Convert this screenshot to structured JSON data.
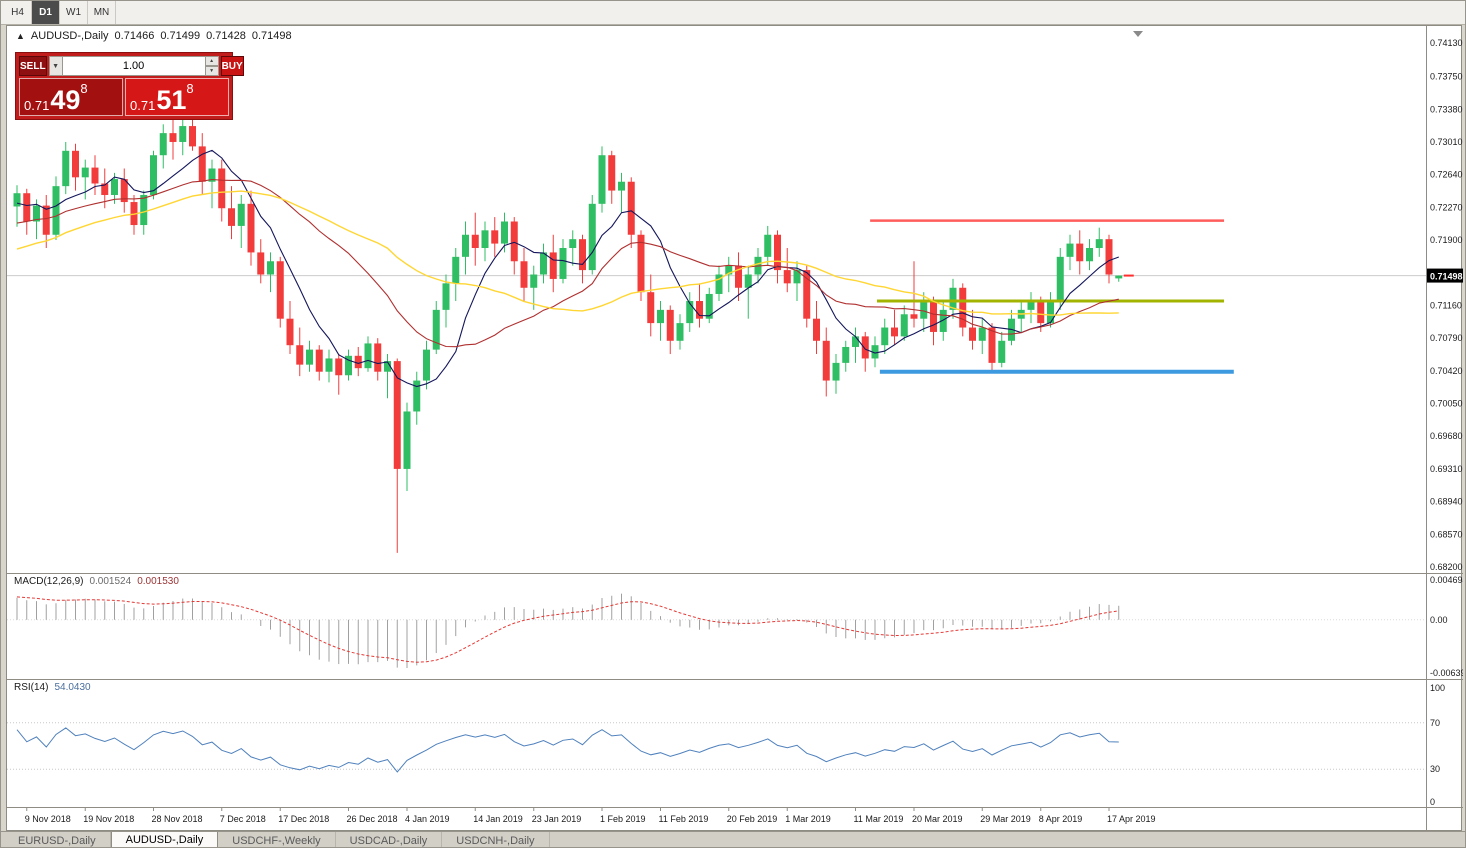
{
  "timeframe_bar": {
    "tabs": [
      {
        "label": "H4",
        "active": false
      },
      {
        "label": "D1",
        "active": true
      },
      {
        "label": "W1",
        "active": false
      },
      {
        "label": "MN",
        "active": false
      }
    ]
  },
  "chart_header": {
    "collapse_icon": "▲",
    "symbol": "AUDUSD-,Daily",
    "open": "0.71466",
    "high": "0.71499",
    "low": "0.71428",
    "close": "0.71498"
  },
  "trade_widget": {
    "sell_label": "SELL",
    "buy_label": "BUY",
    "volume": "1.00",
    "sell_price": {
      "base": "0.71",
      "big": "49",
      "sup": "8"
    },
    "buy_price": {
      "base": "0.71",
      "big": "51",
      "sup": "8"
    },
    "panel_color": "#c21d1d"
  },
  "indicator_headers": {
    "macd_label": "MACD(12,26,9)",
    "macd_value": "0.001524",
    "macd_signal_value": "0.001530",
    "rsi_label": "RSI(14)",
    "rsi_value": "54.0430"
  },
  "bottom_tabs": {
    "tabs": [
      {
        "label": "EURUSD-,Daily",
        "active": false
      },
      {
        "label": "AUDUSD-,Daily",
        "active": true
      },
      {
        "label": "USDCHF-,Weekly",
        "active": false
      },
      {
        "label": "USDCAD-,Daily",
        "active": false
      },
      {
        "label": "USDCNH-,Daily",
        "active": false
      }
    ]
  },
  "chart_data": {
    "type": "candlestick",
    "symbol": "AUDUSD",
    "timeframe": "Daily",
    "colors": {
      "bull": "#2fbe63",
      "bear": "#f23c3c",
      "macd_hist": "#a0a0a0",
      "macd_signal": "#e53935",
      "rsi": "#4f81bd",
      "current_price_line": "#cccccc"
    },
    "price_axis": {
      "current": 0.71498,
      "current_label": "0.71498",
      "labels": [
        "0.74130",
        "0.73750",
        "0.73380",
        "0.73010",
        "0.72640",
        "0.72270",
        "0.71900",
        "0.71530",
        "0.71160",
        "0.70790",
        "0.70420",
        "0.70050",
        "0.69680",
        "0.69310",
        "0.68940",
        "0.68570",
        "0.68200"
      ]
    },
    "x_labels": [
      {
        "text": "9 Nov 2018",
        "i": 1
      },
      {
        "text": "19 Nov 2018",
        "i": 7
      },
      {
        "text": "28 Nov 2018",
        "i": 14
      },
      {
        "text": "7 Dec 2018",
        "i": 21
      },
      {
        "text": "17 Dec 2018",
        "i": 27
      },
      {
        "text": "26 Dec 2018",
        "i": 34
      },
      {
        "text": "4 Jan 2019",
        "i": 40
      },
      {
        "text": "14 Jan 2019",
        "i": 47
      },
      {
        "text": "23 Jan 2019",
        "i": 53
      },
      {
        "text": "1 Feb 2019",
        "i": 60
      },
      {
        "text": "11 Feb 2019",
        "i": 66
      },
      {
        "text": "20 Feb 2019",
        "i": 73
      },
      {
        "text": "1 Mar 2019",
        "i": 79
      },
      {
        "text": "11 Mar 2019",
        "i": 86
      },
      {
        "text": "20 Mar 2019",
        "i": 92
      },
      {
        "text": "29 Mar 2019",
        "i": 99
      },
      {
        "text": "8 Apr 2019",
        "i": 105
      },
      {
        "text": "17 Apr 2019",
        "i": 112
      }
    ],
    "hlines": [
      {
        "price": 0.7212,
        "i1": 87.5,
        "i2": 123.8,
        "color": "#ff5c5c",
        "width": 2.5
      },
      {
        "price": 0.7121,
        "i1": 88.2,
        "i2": 123.8,
        "color": "#a3b400",
        "width": 3
      },
      {
        "price": 0.7041,
        "i1": 88.5,
        "i2": 124.8,
        "color": "#3e9ae0",
        "width": 4
      }
    ],
    "moving_averages": [
      {
        "period": 7,
        "color": "#14165c",
        "width": 1.1
      },
      {
        "period": 21,
        "color": "#b03030",
        "width": 1.1
      },
      {
        "period": 34,
        "color": "#ffd633",
        "width": 1.4
      }
    ],
    "macd": {
      "fast": 12,
      "slow": 26,
      "signal": 9,
      "axis_labels": [
        "0.004694",
        "0.00",
        "-0.00639"
      ]
    },
    "rsi": {
      "period": 14,
      "levels": [
        70,
        30
      ],
      "axis_labels": [
        "100",
        "70",
        "30",
        "0"
      ]
    },
    "pre_history_closes": [
      0.7085,
      0.707,
      0.7055,
      0.706,
      0.7045,
      0.703,
      0.704,
      0.7025,
      0.7035,
      0.705,
      0.704,
      0.706,
      0.7075,
      0.7065,
      0.708,
      0.7095,
      0.7085,
      0.71,
      0.7115,
      0.7105,
      0.712,
      0.711,
      0.7125,
      0.714,
      0.713,
      0.7145,
      0.716,
      0.715,
      0.7165,
      0.7155,
      0.717,
      0.7185,
      0.7175,
      0.719,
      0.718,
      0.7195,
      0.721,
      0.72,
      0.719,
      0.7205,
      0.722,
      0.721,
      0.7225,
      0.7215,
      0.723,
      0.722,
      0.7235,
      0.7225,
      0.724,
      0.723
    ],
    "candles": [
      [
        0.7228,
        0.7252,
        0.7205,
        0.7243
      ],
      [
        0.7243,
        0.7248,
        0.7196,
        0.7211
      ],
      [
        0.7211,
        0.7236,
        0.7191,
        0.7229
      ],
      [
        0.7229,
        0.7241,
        0.7181,
        0.7196
      ],
      [
        0.7196,
        0.7262,
        0.719,
        0.7251
      ],
      [
        0.7251,
        0.7301,
        0.7242,
        0.7291
      ],
      [
        0.7291,
        0.7299,
        0.7246,
        0.7261
      ],
      [
        0.7261,
        0.7281,
        0.7236,
        0.7272
      ],
      [
        0.7272,
        0.7286,
        0.7241,
        0.7254
      ],
      [
        0.7254,
        0.7271,
        0.7226,
        0.7241
      ],
      [
        0.7241,
        0.7266,
        0.7231,
        0.7259
      ],
      [
        0.7259,
        0.7271,
        0.7221,
        0.7233
      ],
      [
        0.7233,
        0.7241,
        0.7196,
        0.7207
      ],
      [
        0.7207,
        0.7246,
        0.7196,
        0.7241
      ],
      [
        0.7241,
        0.7291,
        0.7236,
        0.7286
      ],
      [
        0.7286,
        0.7321,
        0.7271,
        0.7311
      ],
      [
        0.7311,
        0.7331,
        0.7281,
        0.7301
      ],
      [
        0.7301,
        0.7326,
        0.7286,
        0.7319
      ],
      [
        0.7319,
        0.7331,
        0.7291,
        0.7296
      ],
      [
        0.7296,
        0.7311,
        0.7241,
        0.7256
      ],
      [
        0.7256,
        0.7281,
        0.7226,
        0.7271
      ],
      [
        0.7271,
        0.7281,
        0.7211,
        0.7226
      ],
      [
        0.7226,
        0.7251,
        0.7191,
        0.7206
      ],
      [
        0.7206,
        0.7241,
        0.7181,
        0.7231
      ],
      [
        0.7231,
        0.7246,
        0.7161,
        0.7176
      ],
      [
        0.7176,
        0.7191,
        0.7141,
        0.7151
      ],
      [
        0.7151,
        0.7176,
        0.7131,
        0.7166
      ],
      [
        0.7166,
        0.7171,
        0.7091,
        0.7101
      ],
      [
        0.7101,
        0.7121,
        0.7061,
        0.7071
      ],
      [
        0.7071,
        0.7091,
        0.7036,
        0.7049
      ],
      [
        0.7049,
        0.7076,
        0.7041,
        0.7066
      ],
      [
        0.7066,
        0.7071,
        0.7031,
        0.7041
      ],
      [
        0.7041,
        0.7066,
        0.7029,
        0.7056
      ],
      [
        0.7056,
        0.7061,
        0.7015,
        0.7037
      ],
      [
        0.7037,
        0.7066,
        0.7031,
        0.7059
      ],
      [
        0.7059,
        0.7069,
        0.7036,
        0.7045
      ],
      [
        0.7045,
        0.7081,
        0.7041,
        0.7073
      ],
      [
        0.7073,
        0.7079,
        0.7031,
        0.7041
      ],
      [
        0.7041,
        0.7061,
        0.7011,
        0.7053
      ],
      [
        0.7053,
        0.7056,
        0.6836,
        0.6931
      ],
      [
        0.6931,
        0.7006,
        0.6906,
        0.6996
      ],
      [
        0.6996,
        0.7041,
        0.6981,
        0.7031
      ],
      [
        0.7031,
        0.7076,
        0.7021,
        0.7066
      ],
      [
        0.7066,
        0.7121,
        0.7061,
        0.7111
      ],
      [
        0.7111,
        0.7151,
        0.7091,
        0.7141
      ],
      [
        0.7141,
        0.7181,
        0.7121,
        0.7171
      ],
      [
        0.7171,
        0.7211,
        0.7151,
        0.7196
      ],
      [
        0.7196,
        0.7221,
        0.7161,
        0.7181
      ],
      [
        0.7181,
        0.7211,
        0.7166,
        0.7201
      ],
      [
        0.7201,
        0.7216,
        0.7171,
        0.7186
      ],
      [
        0.7186,
        0.7221,
        0.7176,
        0.7211
      ],
      [
        0.7211,
        0.7216,
        0.7151,
        0.7166
      ],
      [
        0.7166,
        0.7181,
        0.7121,
        0.7136
      ],
      [
        0.7136,
        0.7161,
        0.7111,
        0.7151
      ],
      [
        0.7151,
        0.7186,
        0.7141,
        0.7176
      ],
      [
        0.7176,
        0.7196,
        0.7131,
        0.7146
      ],
      [
        0.7146,
        0.7191,
        0.7141,
        0.7181
      ],
      [
        0.7181,
        0.7201,
        0.7161,
        0.7191
      ],
      [
        0.7191,
        0.7196,
        0.7141,
        0.7156
      ],
      [
        0.7156,
        0.7241,
        0.7151,
        0.7231
      ],
      [
        0.7231,
        0.7296,
        0.7221,
        0.7286
      ],
      [
        0.7286,
        0.7291,
        0.7231,
        0.7246
      ],
      [
        0.7246,
        0.7266,
        0.7221,
        0.7256
      ],
      [
        0.7256,
        0.7261,
        0.7181,
        0.7196
      ],
      [
        0.7196,
        0.7201,
        0.7121,
        0.7131
      ],
      [
        0.7131,
        0.7151,
        0.7081,
        0.7096
      ],
      [
        0.7096,
        0.7121,
        0.7076,
        0.7111
      ],
      [
        0.7111,
        0.7116,
        0.7061,
        0.7076
      ],
      [
        0.7076,
        0.7106,
        0.7066,
        0.7096
      ],
      [
        0.7096,
        0.7131,
        0.7086,
        0.7121
      ],
      [
        0.7121,
        0.7141,
        0.7091,
        0.7101
      ],
      [
        0.7101,
        0.7136,
        0.7096,
        0.7129
      ],
      [
        0.7129,
        0.7161,
        0.7121,
        0.7151
      ],
      [
        0.7151,
        0.7171,
        0.7131,
        0.7161
      ],
      [
        0.7161,
        0.7176,
        0.7121,
        0.7136
      ],
      [
        0.7136,
        0.7161,
        0.7101,
        0.7151
      ],
      [
        0.7151,
        0.7181,
        0.7141,
        0.7171
      ],
      [
        0.7171,
        0.7206,
        0.7161,
        0.7196
      ],
      [
        0.7196,
        0.7201,
        0.7141,
        0.7156
      ],
      [
        0.7156,
        0.7181,
        0.7131,
        0.7141
      ],
      [
        0.7141,
        0.7166,
        0.7121,
        0.7156
      ],
      [
        0.7156,
        0.7161,
        0.7091,
        0.7101
      ],
      [
        0.7101,
        0.7121,
        0.7061,
        0.7076
      ],
      [
        0.7076,
        0.7091,
        0.7013,
        0.7031
      ],
      [
        0.7031,
        0.7061,
        0.7016,
        0.7051
      ],
      [
        0.7051,
        0.7076,
        0.7041,
        0.7069
      ],
      [
        0.7069,
        0.7091,
        0.7051,
        0.7081
      ],
      [
        0.7081,
        0.7086,
        0.7041,
        0.7056
      ],
      [
        0.7056,
        0.7081,
        0.7046,
        0.7071
      ],
      [
        0.7071,
        0.7101,
        0.7061,
        0.7091
      ],
      [
        0.7091,
        0.7111,
        0.7071,
        0.7081
      ],
      [
        0.7081,
        0.7116,
        0.7076,
        0.7106
      ],
      [
        0.7106,
        0.7166,
        0.7091,
        0.7101
      ],
      [
        0.7101,
        0.7131,
        0.7086,
        0.7121
      ],
      [
        0.7121,
        0.7126,
        0.7071,
        0.7086
      ],
      [
        0.7086,
        0.7121,
        0.7076,
        0.7111
      ],
      [
        0.7111,
        0.7146,
        0.7101,
        0.7136
      ],
      [
        0.7136,
        0.7141,
        0.7081,
        0.7091
      ],
      [
        0.7091,
        0.7111,
        0.7066,
        0.7076
      ],
      [
        0.7076,
        0.7101,
        0.7061,
        0.7091
      ],
      [
        0.7091,
        0.7096,
        0.7041,
        0.7051
      ],
      [
        0.7051,
        0.7086,
        0.7046,
        0.7076
      ],
      [
        0.7076,
        0.7111,
        0.7071,
        0.7101
      ],
      [
        0.7101,
        0.7121,
        0.7086,
        0.7111
      ],
      [
        0.7111,
        0.7131,
        0.7096,
        0.7121
      ],
      [
        0.7121,
        0.7126,
        0.7086,
        0.7096
      ],
      [
        0.7096,
        0.7131,
        0.7091,
        0.7121
      ],
      [
        0.7121,
        0.7181,
        0.7111,
        0.7171
      ],
      [
        0.7171,
        0.7196,
        0.7156,
        0.7186
      ],
      [
        0.7186,
        0.7201,
        0.7151,
        0.7166
      ],
      [
        0.7166,
        0.7191,
        0.7156,
        0.7181
      ],
      [
        0.7181,
        0.7204,
        0.7171,
        0.7191
      ],
      [
        0.7191,
        0.7196,
        0.7141,
        0.7151
      ],
      [
        0.71466,
        0.71499,
        0.71428,
        0.71498
      ]
    ]
  }
}
